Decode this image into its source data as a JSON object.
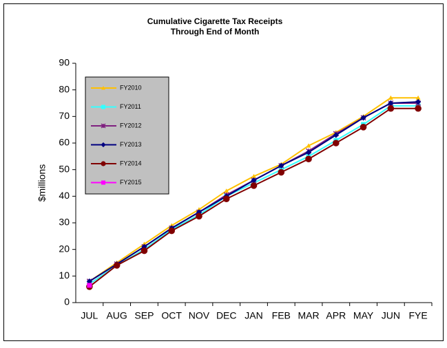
{
  "chart_data": {
    "type": "line",
    "title": "Cumulative Cigarette Tax Receipts",
    "subtitle": "Through End of Month",
    "y_label": "$millions",
    "categories": [
      "JUL",
      "AUG",
      "SEP",
      "OCT",
      "NOV",
      "DEC",
      "JAN",
      "FEB",
      "MAR",
      "APR",
      "MAY",
      "JUN",
      "FYE"
    ],
    "series": [
      {
        "name": "FY2010",
        "color": "#ffc000",
        "marker": "triangle",
        "values": [
          8,
          15,
          22,
          29,
          35,
          42,
          47.5,
          52,
          59,
          64,
          70,
          77,
          77
        ]
      },
      {
        "name": "FY2011",
        "color": "#33ffff",
        "marker": "square",
        "values": [
          7,
          14,
          20,
          27.5,
          33,
          40,
          45,
          50,
          55,
          61,
          67,
          74,
          74
        ]
      },
      {
        "name": "FY2012",
        "color": "#7f1f7f",
        "marker": "star",
        "values": [
          8,
          14.5,
          21,
          28,
          34,
          40.5,
          46,
          51.5,
          57,
          63.5,
          69.5,
          75,
          75
        ]
      },
      {
        "name": "FY2013",
        "color": "#000080",
        "marker": "diamond",
        "values": [
          8,
          14.5,
          21,
          28,
          34,
          40,
          46,
          51.5,
          56.5,
          63,
          69.5,
          75,
          75.5
        ]
      },
      {
        "name": "FY2014",
        "color": "#800000",
        "marker": "circle",
        "values": [
          6,
          14,
          19.5,
          27,
          32.5,
          39,
          44,
          49,
          54,
          60,
          66,
          73,
          73
        ]
      },
      {
        "name": "FY2015",
        "color": "#ff00ff",
        "marker": "square",
        "values": [
          6.5,
          null,
          null,
          null,
          null,
          null,
          null,
          null,
          null,
          null,
          null,
          null,
          null
        ]
      }
    ],
    "ylim": [
      0,
      90
    ],
    "yticks": [
      0,
      10,
      20,
      30,
      40,
      50,
      60,
      70,
      80,
      90
    ],
    "grid": false,
    "legend": "upper left"
  }
}
